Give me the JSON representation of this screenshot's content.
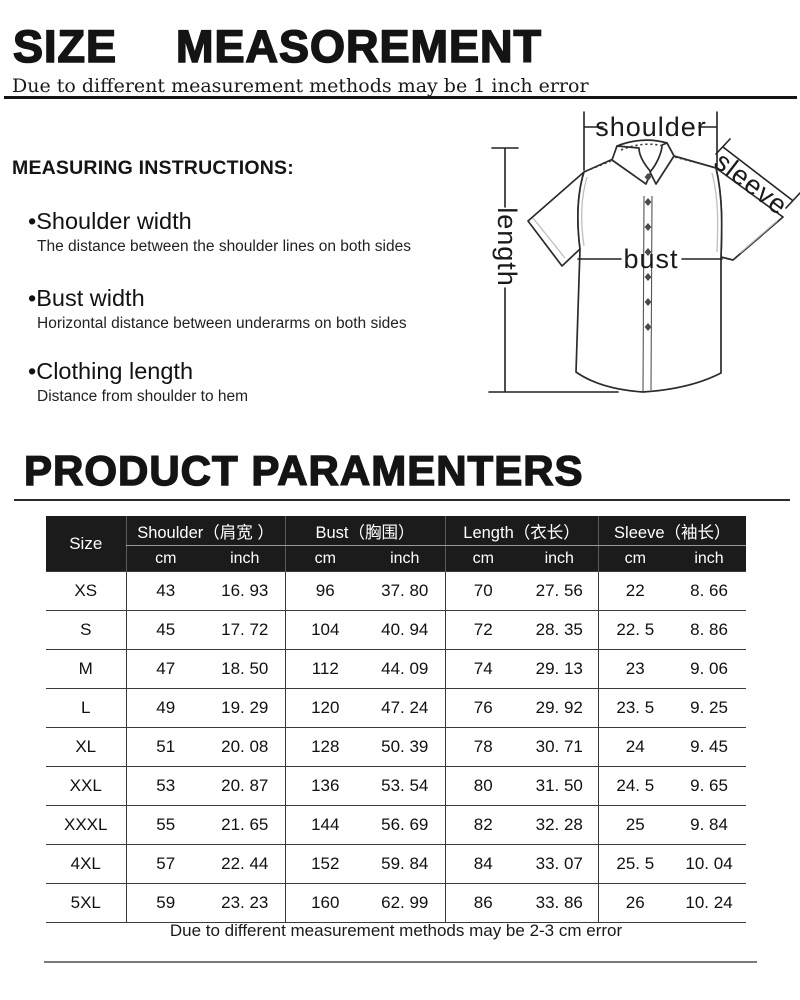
{
  "header": {
    "title": "SIZE  MEASOREMENT",
    "subtitle": "Due to different measurement methods may be 1 inch error"
  },
  "instructions": {
    "heading": "MEASURING INSTRUCTIONS:",
    "items": [
      {
        "bullet": "•",
        "title": "Shoulder width",
        "desc": "The distance between the shoulder lines on both sides"
      },
      {
        "bullet": "•",
        "title": "Bust width",
        "desc": "Horizontal distance between underarms on both sides"
      },
      {
        "bullet": "•",
        "title": "Clothing length",
        "desc": "Distance from shoulder to hem"
      }
    ]
  },
  "diagram": {
    "shoulder_label": "shoulder",
    "sleeve_label": "sleeve",
    "length_label": "length",
    "bust_label": "bust"
  },
  "parameters": {
    "heading": "PRODUCT PARAMENTERS",
    "note": "Due to different measurement methods may be 2-3 cm error",
    "table": {
      "size_header": "Size",
      "groups": [
        "Shoulder（肩宽 ）",
        "Bust（胸围）",
        "Length（衣长）",
        "Sleeve（袖长）"
      ],
      "units": [
        "cm",
        "inch",
        "cm",
        "inch",
        "cm",
        "inch",
        "cm",
        "inch"
      ],
      "rows": [
        {
          "size": "XS",
          "values": [
            "43",
            "16. 93",
            "96",
            "37. 80",
            "70",
            "27. 56",
            "22",
            "8. 66"
          ]
        },
        {
          "size": "S",
          "values": [
            "45",
            "17. 72",
            "104",
            "40. 94",
            "72",
            "28. 35",
            "22. 5",
            "8. 86"
          ]
        },
        {
          "size": "M",
          "values": [
            "47",
            "18. 50",
            "112",
            "44. 09",
            "74",
            "29. 13",
            "23",
            "9. 06"
          ]
        },
        {
          "size": "L",
          "values": [
            "49",
            "19. 29",
            "120",
            "47. 24",
            "76",
            "29. 92",
            "23. 5",
            "9. 25"
          ]
        },
        {
          "size": "XL",
          "values": [
            "51",
            "20. 08",
            "128",
            "50. 39",
            "78",
            "30. 71",
            "24",
            "9. 45"
          ]
        },
        {
          "size": "XXL",
          "values": [
            "53",
            "20. 87",
            "136",
            "53. 54",
            "80",
            "31. 50",
            "24. 5",
            "9. 65"
          ]
        },
        {
          "size": "XXXL",
          "values": [
            "55",
            "21. 65",
            "144",
            "56. 69",
            "82",
            "32. 28",
            "25",
            "9. 84"
          ]
        },
        {
          "size": "4XL",
          "values": [
            "57",
            "22. 44",
            "152",
            "59. 84",
            "84",
            "33. 07",
            "25. 5",
            "10. 04"
          ]
        },
        {
          "size": "5XL",
          "values": [
            "59",
            "23. 23",
            "160",
            "62. 99",
            "86",
            "33. 86",
            "26",
            "10. 24"
          ]
        }
      ]
    }
  },
  "colors": {
    "table_header_bg": "#1b1b1b",
    "table_header_text": "#ffffff",
    "body_text": "#111111",
    "grid_line": "#3a3a3a"
  }
}
